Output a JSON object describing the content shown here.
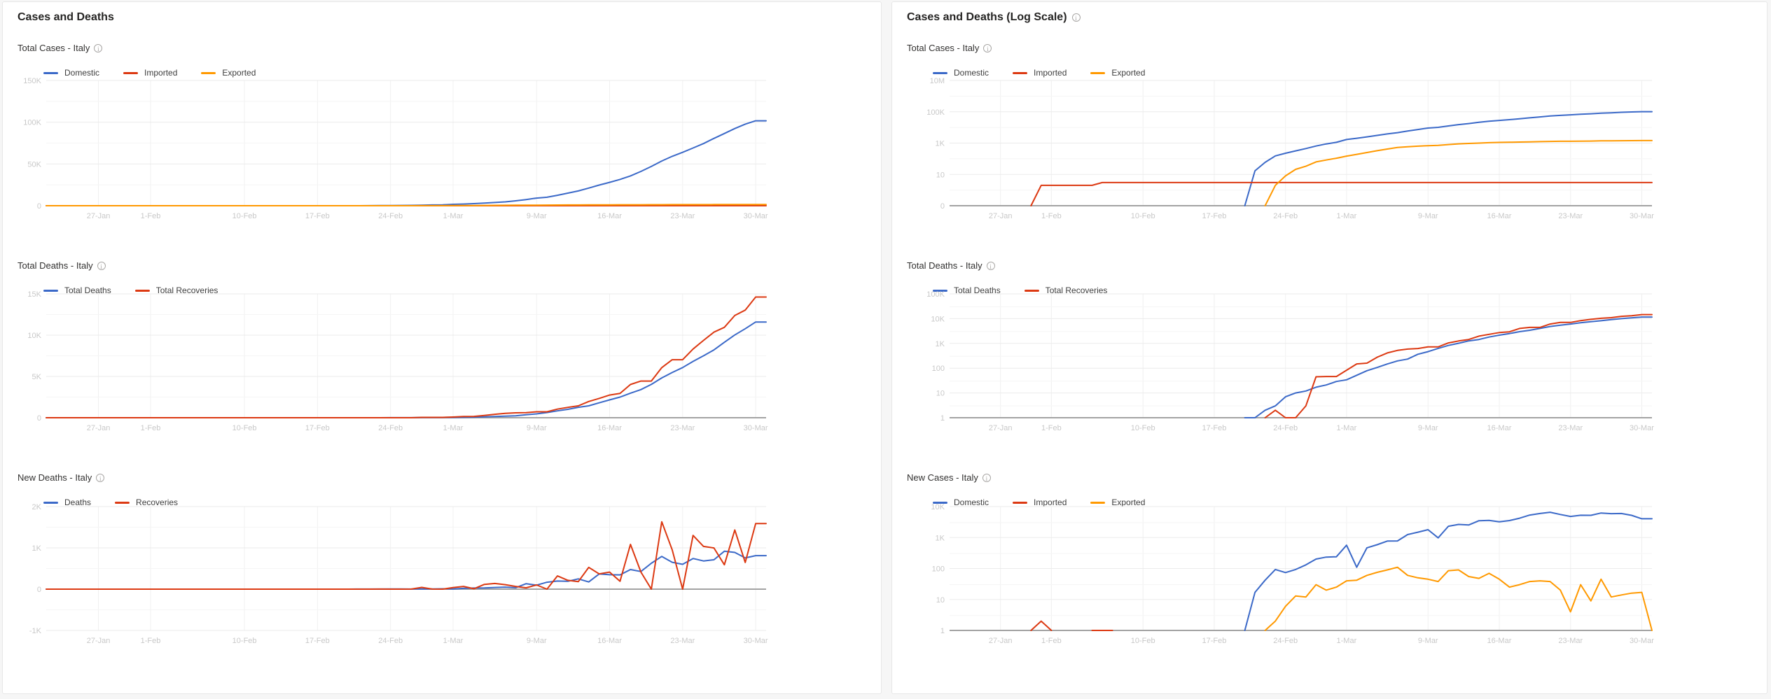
{
  "panels": [
    {
      "title": "Cases and Deaths",
      "info_icon": false
    },
    {
      "title": "Cases and Deaths (Log Scale)",
      "info_icon": true
    }
  ],
  "colors": {
    "blue": "#3b69c8",
    "red": "#dc3912",
    "orange": "#ff9900",
    "baseline": "#a3a3a3",
    "grid_major": "#ebebeb",
    "grid_minor": "#f5f5f5",
    "grid_vertical": "#f0f0f0",
    "axis_label": "#c8c8c8"
  },
  "x_ticks": [
    {
      "label": "27-Jan",
      "f": 0.0725
    },
    {
      "label": "1-Feb",
      "f": 0.1449
    },
    {
      "label": "10-Feb",
      "f": 0.2754
    },
    {
      "label": "17-Feb",
      "f": 0.3768
    },
    {
      "label": "24-Feb",
      "f": 0.4783
    },
    {
      "label": "1-Mar",
      "f": 0.5652
    },
    {
      "label": "9-Mar",
      "f": 0.6812
    },
    {
      "label": "16-Mar",
      "f": 0.7826
    },
    {
      "label": "23-Mar",
      "f": 0.8841
    },
    {
      "label": "30-Mar",
      "f": 0.9855
    }
  ],
  "dates": [
    "22-Jan",
    "23-Jan",
    "24-Jan",
    "25-Jan",
    "26-Jan",
    "27-Jan",
    "28-Jan",
    "29-Jan",
    "30-Jan",
    "31-Jan",
    "1-Feb",
    "2-Feb",
    "3-Feb",
    "4-Feb",
    "5-Feb",
    "6-Feb",
    "7-Feb",
    "8-Feb",
    "9-Feb",
    "10-Feb",
    "11-Feb",
    "12-Feb",
    "13-Feb",
    "14-Feb",
    "15-Feb",
    "16-Feb",
    "17-Feb",
    "18-Feb",
    "19-Feb",
    "20-Feb",
    "21-Feb",
    "22-Feb",
    "23-Feb",
    "24-Feb",
    "25-Feb",
    "26-Feb",
    "27-Feb",
    "28-Feb",
    "29-Feb",
    "1-Mar",
    "2-Mar",
    "3-Mar",
    "4-Mar",
    "5-Mar",
    "6-Mar",
    "7-Mar",
    "8-Mar",
    "9-Mar",
    "10-Mar",
    "11-Mar",
    "12-Mar",
    "13-Mar",
    "14-Mar",
    "15-Mar",
    "16-Mar",
    "17-Mar",
    "18-Mar",
    "19-Mar",
    "20-Mar",
    "21-Mar",
    "22-Mar",
    "23-Mar",
    "24-Mar",
    "25-Mar",
    "26-Mar",
    "27-Mar",
    "28-Mar",
    "29-Mar",
    "30-Mar",
    "31-Mar"
  ],
  "series_values": {
    "domestic_total": {
      "start_day": 30,
      "hold_last": true,
      "values": [
        17,
        59,
        152,
        226,
        319,
        450,
        652,
        885,
        1125,
        1691,
        2033,
        2499,
        3086,
        3855,
        4633,
        5880,
        7372,
        9169,
        10146,
        12459,
        15110,
        17657,
        21154,
        24744,
        27977,
        31503,
        35710,
        41032,
        47018,
        53575,
        59135,
        63924,
        69173,
        74383,
        80586,
        86495,
        92469,
        97686,
        101736,
        101736
      ]
    },
    "imported_total": {
      "start_day": 9,
      "hold_last": true,
      "values": [
        2,
        2,
        2,
        2,
        2,
        2,
        3
      ]
    },
    "exported_total": {
      "start_day": 32,
      "hold_last": true,
      "values": [
        2,
        8,
        21,
        33,
        63,
        83,
        108,
        148,
        190,
        250,
        325,
        415,
        525,
        585,
        635,
        680,
        718,
        803,
        893,
        948,
        996,
        1066,
        1111,
        1136,
        1166,
        1204,
        1244,
        1282,
        1302,
        1306,
        1336,
        1345,
        1390,
        1402,
        1416,
        1432,
        1449,
        1449
      ]
    },
    "deaths_total": {
      "start_day": 30,
      "hold_last": true,
      "values": [
        1,
        2,
        3,
        7,
        10,
        12,
        17,
        21,
        29,
        34,
        52,
        79,
        107,
        148,
        197,
        233,
        366,
        463,
        631,
        827,
        1016,
        1266,
        1441,
        1809,
        2158,
        2503,
        2978,
        3405,
        4032,
        4825,
        5476,
        6077,
        6820,
        7503,
        8215,
        9134,
        10023,
        10779,
        11591,
        11591
      ]
    },
    "recoveries_total": {
      "start_day": 32,
      "hold_last": true,
      "values": [
        2,
        1,
        1,
        3,
        45,
        46,
        46,
        83,
        149,
        160,
        276,
        414,
        523,
        589,
        622,
        724,
        724,
        1045,
        1258,
        1439,
        1966,
        2335,
        2749,
        2941,
        4025,
        4440,
        4440,
        6072,
        7024,
        7024,
        8326,
        9362,
        10361,
        10950,
        12384,
        13030,
        14620,
        14620
      ]
    },
    "new_deaths": {
      "start_day": 30,
      "hold_last": false,
      "values": [
        1,
        1,
        1,
        4,
        3,
        2,
        5,
        4,
        8,
        5,
        18,
        27,
        28,
        41,
        49,
        36,
        133,
        97,
        168,
        196,
        189,
        250,
        175,
        368,
        349,
        345,
        475,
        427,
        627,
        793,
        651,
        601,
        743,
        683,
        712,
        919,
        889,
        756,
        812,
        812
      ]
    },
    "new_recoveries": {
      "start_day": 32,
      "hold_last": false,
      "values": [
        2,
        0,
        0,
        1,
        42,
        1,
        0,
        37,
        66,
        11,
        116,
        138,
        109,
        66,
        33,
        102,
        0,
        321,
        213,
        181,
        527,
        369,
        414,
        192,
        1084,
        415,
        0,
        1632,
        952,
        0,
        1302,
        1036,
        999,
        589,
        1434,
        646,
        1590,
        1590
      ]
    },
    "new_domestic": {
      "start_day": 30,
      "hold_last": false,
      "values": [
        17,
        42,
        93,
        74,
        93,
        131,
        202,
        233,
        240,
        566,
        110,
        466,
        587,
        769,
        778,
        1247,
        1492,
        1797,
        977,
        2313,
        2651,
        2547,
        3497,
        3590,
        3233,
        3526,
        4207,
        5322,
        5986,
        6557,
        5560,
        4789,
        5249,
        5210,
        6203,
        5909,
        5974,
        5217,
        4050,
        4050
      ]
    },
    "new_imported": {
      "start_day": 9,
      "hold_last": false,
      "values": [
        2,
        0,
        0,
        0,
        0,
        0,
        1
      ]
    },
    "new_exported": {
      "start_day": 32,
      "hold_last": false,
      "values": [
        2,
        6,
        13,
        12,
        30,
        20,
        25,
        40,
        42,
        60,
        75,
        90,
        110,
        60,
        50,
        45,
        38,
        85,
        90,
        55,
        48,
        70,
        45,
        25,
        30,
        38,
        40,
        38,
        20,
        4,
        30,
        9,
        45,
        12,
        14,
        16,
        17,
        1
      ]
    }
  },
  "chart_data": [
    {
      "panel": 0,
      "row": 0,
      "type": "line",
      "scale": "linear",
      "title": "Total Cases - Italy",
      "info_icon": true,
      "ymin": 0,
      "ymax": 150000,
      "y_ticks": [
        {
          "label": "150K",
          "v": 150000
        },
        {
          "label": "100K",
          "v": 100000
        },
        {
          "label": "50K",
          "v": 50000
        },
        {
          "label": "0",
          "v": 0
        }
      ],
      "y_minor_v": [
        125000,
        75000,
        25000
      ],
      "series": [
        {
          "name": "Domestic",
          "color": "#3b69c8",
          "values_key": "domestic_total"
        },
        {
          "name": "Imported",
          "color": "#dc3912",
          "values_key": "imported_total"
        },
        {
          "name": "Exported",
          "color": "#ff9900",
          "values_key": "exported_total"
        }
      ]
    },
    {
      "panel": 0,
      "row": 1,
      "type": "line",
      "scale": "linear",
      "title": "Total Deaths - Italy",
      "info_icon": true,
      "ymin": 0,
      "ymax": 15000,
      "y_ticks": [
        {
          "label": "15K",
          "v": 15000
        },
        {
          "label": "10K",
          "v": 10000
        },
        {
          "label": "5K",
          "v": 5000
        },
        {
          "label": "0",
          "v": 0
        }
      ],
      "y_minor_v": [
        12500,
        7500,
        2500
      ],
      "series": [
        {
          "name": "Total Deaths",
          "color": "#3b69c8",
          "values_key": "deaths_total"
        },
        {
          "name": "Total Recoveries",
          "color": "#dc3912",
          "values_key": "recoveries_total"
        }
      ]
    },
    {
      "panel": 0,
      "row": 2,
      "type": "line",
      "scale": "linear",
      "title": "New Deaths - Italy",
      "info_icon": true,
      "ymin": -1000,
      "ymax": 2000,
      "y_ticks": [
        {
          "label": "2K",
          "v": 2000
        },
        {
          "label": "1K",
          "v": 1000
        },
        {
          "label": "0",
          "v": 0
        },
        {
          "label": "-1K",
          "v": -1000
        }
      ],
      "y_minor_v": [
        1500,
        500,
        -500
      ],
      "series": [
        {
          "name": "Deaths",
          "color": "#3b69c8",
          "values_key": "new_deaths"
        },
        {
          "name": "Recoveries",
          "color": "#dc3912",
          "values_key": "new_recoveries"
        }
      ]
    },
    {
      "panel": 1,
      "row": 0,
      "type": "line",
      "scale": "log",
      "title": "Total Cases - Italy",
      "info_icon": true,
      "log_min": -1,
      "log_max": 7,
      "y_ticks": [
        {
          "label": "10M",
          "e": 7
        },
        {
          "label": "100K",
          "e": 5
        },
        {
          "label": "1K",
          "e": 3
        },
        {
          "label": "10",
          "e": 1
        },
        {
          "label": "0",
          "e": null
        }
      ],
      "y_minor_e": [
        6,
        4,
        2,
        0
      ],
      "series": [
        {
          "name": "Domestic",
          "color": "#3b69c8",
          "values_key": "domestic_total"
        },
        {
          "name": "Imported",
          "color": "#dc3912",
          "values_key": "imported_total"
        },
        {
          "name": "Exported",
          "color": "#ff9900",
          "values_key": "exported_total"
        }
      ]
    },
    {
      "panel": 1,
      "row": 1,
      "type": "line",
      "scale": "log",
      "title": "Total Deaths - Italy",
      "info_icon": true,
      "log_min": 0,
      "log_max": 5,
      "y_ticks": [
        {
          "label": "100K",
          "e": 5
        },
        {
          "label": "10K",
          "e": 4
        },
        {
          "label": "1K",
          "e": 3
        },
        {
          "label": "100",
          "e": 2
        },
        {
          "label": "10",
          "e": 1
        },
        {
          "label": "1",
          "e": 0
        }
      ],
      "y_minor_e": [
        4.48,
        3.48,
        2.48,
        1.48,
        0.48
      ],
      "series": [
        {
          "name": "Total Deaths",
          "color": "#3b69c8",
          "values_key": "deaths_total"
        },
        {
          "name": "Total Recoveries",
          "color": "#dc3912",
          "values_key": "recoveries_total"
        }
      ]
    },
    {
      "panel": 1,
      "row": 2,
      "type": "line",
      "scale": "log",
      "title": "New Cases - Italy",
      "info_icon": true,
      "log_min": 0,
      "log_max": 4,
      "y_ticks": [
        {
          "label": "10K",
          "e": 4
        },
        {
          "label": "1K",
          "e": 3
        },
        {
          "label": "100",
          "e": 2
        },
        {
          "label": "10",
          "e": 1
        },
        {
          "label": "1",
          "e": 0
        }
      ],
      "y_minor_e": [
        3.48,
        2.48,
        1.48,
        0.48
      ],
      "series": [
        {
          "name": "Domestic",
          "color": "#3b69c8",
          "values_key": "new_domestic"
        },
        {
          "name": "Imported",
          "color": "#dc3912",
          "values_key": "new_imported"
        },
        {
          "name": "Exported",
          "color": "#ff9900",
          "values_key": "new_exported"
        }
      ]
    }
  ]
}
